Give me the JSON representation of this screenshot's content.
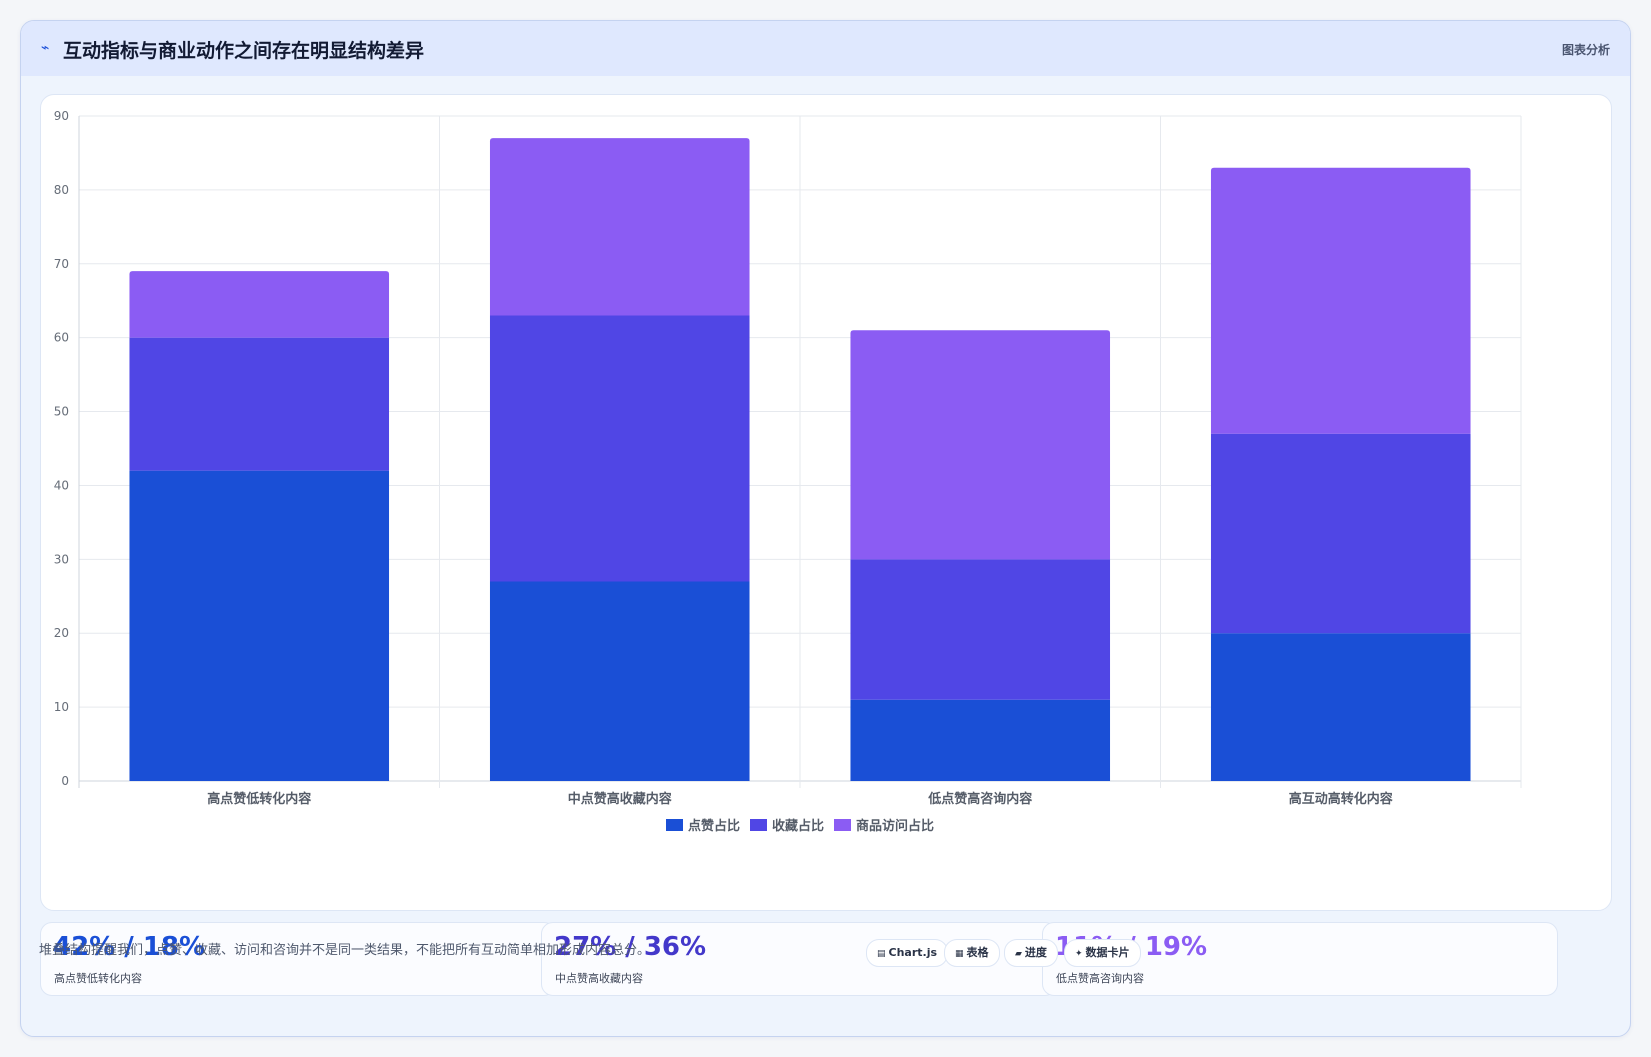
{
  "header": {
    "icon": "chart-line-icon",
    "title": "互动指标与商业动作之间存在明显结构差异",
    "tag": "图表分析"
  },
  "chart_data": {
    "type": "bar",
    "stacked": true,
    "categories": [
      "高点赞低转化内容",
      "中点赞高收藏内容",
      "低点赞高咨询内容",
      "高互动高转化内容"
    ],
    "series": [
      {
        "name": "点赞占比",
        "values": [
          42,
          27,
          11,
          20
        ],
        "color": "#1a4fd6"
      },
      {
        "name": "收藏占比",
        "values": [
          18,
          36,
          19,
          27
        ],
        "color": "#5046e5"
      },
      {
        "name": "商品访问占比",
        "values": [
          9,
          24,
          31,
          36
        ],
        "color": "#8b5cf3"
      }
    ],
    "yticks": [
      0,
      10,
      20,
      30,
      40,
      50,
      60,
      70,
      80,
      90
    ],
    "ylim": [
      0,
      90
    ],
    "grid": true,
    "legend_position": "bottom-center"
  },
  "stats": [
    {
      "value": "42% / 18%",
      "label": "高点赞低转化内容",
      "color": "#1a4fd6"
    },
    {
      "value": "27% / 36%",
      "label": "中点赞高收藏内容",
      "color": "#4338ca"
    },
    {
      "value": "11% / 19%",
      "label": "低点赞高咨询内容",
      "color": "#8b5cf3"
    }
  ],
  "footer": {
    "note": "堆叠结构提醒我们，点赞、收藏、访问和咨询并不是同一类结果，不能把所有互动简单相加形成内容总分。",
    "chips": [
      {
        "icon": "▤",
        "icon_name": "chart-icon",
        "label": "Chart.js"
      },
      {
        "icon": "▦",
        "icon_name": "table-icon",
        "label": "表格"
      },
      {
        "icon": "▰",
        "icon_name": "progress-icon",
        "label": "进度"
      },
      {
        "icon": "✦",
        "icon_name": "sparkle-icon",
        "label": "数据卡片"
      }
    ]
  }
}
